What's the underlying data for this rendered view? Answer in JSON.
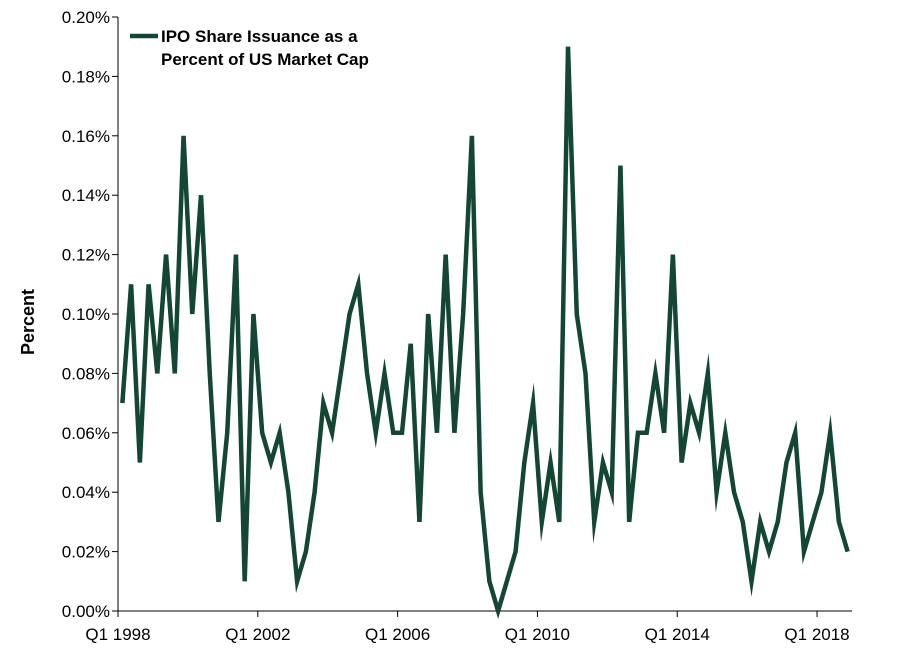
{
  "chart_data": {
    "type": "line",
    "title": "",
    "xlabel": "",
    "ylabel": "Percent",
    "ylim": [
      0,
      0.2
    ],
    "y_ticks": [
      "0.00%",
      "0.02%",
      "0.04%",
      "0.06%",
      "0.08%",
      "0.10%",
      "0.12%",
      "0.14%",
      "0.16%",
      "0.18%",
      "0.20%"
    ],
    "x_range": [
      "Q1 1998",
      "Q3 2018"
    ],
    "x_ticks": [
      "Q1 1998",
      "Q1 2002",
      "Q1 2006",
      "Q1 2010",
      "Q1 2014",
      "Q1 2018"
    ],
    "grid": false,
    "legend": "top-left",
    "series": [
      {
        "name": "IPO Share Issuance as a Percent of US Market Cap",
        "color": "#134734",
        "values": [
          0.07,
          0.11,
          0.05,
          0.11,
          0.08,
          0.12,
          0.08,
          0.16,
          0.1,
          0.14,
          0.08,
          0.03,
          0.06,
          0.12,
          0.01,
          0.1,
          0.06,
          0.05,
          0.06,
          0.04,
          0.01,
          0.02,
          0.04,
          0.07,
          0.06,
          0.08,
          0.1,
          0.11,
          0.08,
          0.06,
          0.08,
          0.06,
          0.06,
          0.09,
          0.03,
          0.1,
          0.06,
          0.12,
          0.06,
          0.1,
          0.16,
          0.04,
          0.01,
          0.0,
          0.01,
          0.02,
          0.05,
          0.07,
          0.03,
          0.05,
          0.03,
          0.19,
          0.1,
          0.08,
          0.03,
          0.05,
          0.04,
          0.15,
          0.03,
          0.06,
          0.06,
          0.08,
          0.06,
          0.12,
          0.05,
          0.07,
          0.06,
          0.08,
          0.04,
          0.06,
          0.04,
          0.03,
          0.01,
          0.03,
          0.02,
          0.03,
          0.05,
          0.06,
          0.02,
          0.03,
          0.04,
          0.06,
          0.03,
          0.02
        ]
      }
    ]
  },
  "legend": {
    "line1": "IPO Share Issuance as a",
    "line2": "Percent of US Market Cap"
  }
}
